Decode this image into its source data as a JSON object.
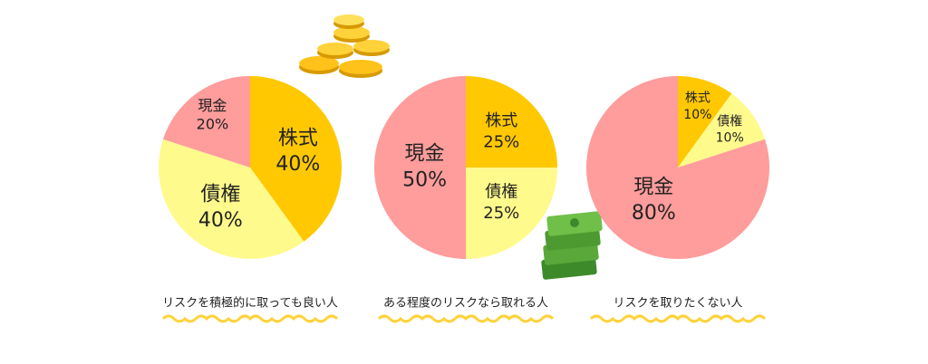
{
  "chart_data": [
    {
      "type": "pie",
      "title": "リスクを積極的に取っても良い人",
      "categories": [
        "株式",
        "債権",
        "現金"
      ],
      "values": [
        40,
        40,
        20
      ],
      "value_labels": [
        "40%",
        "40%",
        "20%"
      ],
      "colors": [
        "#ffc800",
        "#fffa8c",
        "#ff9c9c"
      ]
    },
    {
      "type": "pie",
      "title": "ある程度のリスクなら取れる人",
      "categories": [
        "株式",
        "債権",
        "現金"
      ],
      "values": [
        25,
        25,
        50
      ],
      "value_labels": [
        "25%",
        "25%",
        "50%"
      ],
      "colors": [
        "#ffc800",
        "#fffa8c",
        "#ff9c9c"
      ]
    },
    {
      "type": "pie",
      "title": "リスクを取りたくない人",
      "categories": [
        "株式",
        "債権",
        "現金"
      ],
      "values": [
        10,
        10,
        80
      ],
      "value_labels": [
        "10%",
        "10%",
        "80%"
      ],
      "colors": [
        "#ffc800",
        "#fffa8c",
        "#ff9c9c"
      ]
    }
  ]
}
